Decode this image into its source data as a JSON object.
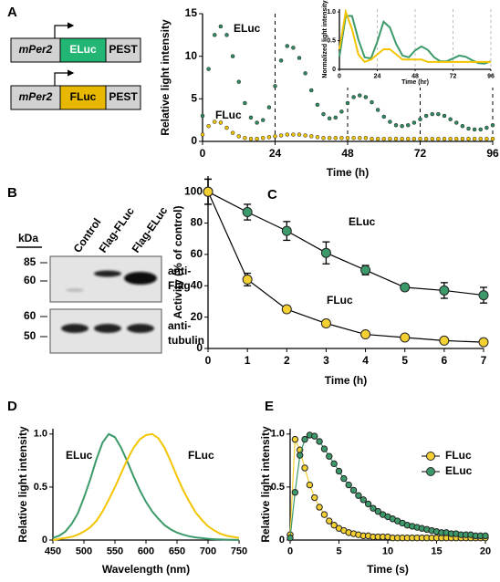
{
  "constructs": [
    {
      "promoter": "mPer2",
      "reporter": "ELuc",
      "degron": "PEST"
    },
    {
      "promoter": "mPer2",
      "reporter": "FLuc",
      "degron": "PEST"
    }
  ],
  "blot": {
    "panel": "B",
    "unit": "kDa",
    "lanes": [
      "Control",
      "Flag-FLuc",
      "Flag-ELuc"
    ],
    "top": {
      "markers": [
        "85",
        "60"
      ],
      "label": [
        "anti-",
        "Flag"
      ]
    },
    "bottom": {
      "markers": [
        "60",
        "50"
      ],
      "label": [
        "anti-",
        "tubulin"
      ]
    }
  },
  "chart_data": [
    {
      "type": "line",
      "panel": "A",
      "ylabel": "Relative light intensity",
      "xlabel": "Time (h)",
      "xlim": [
        0,
        96
      ],
      "xticks": [
        0,
        24,
        48,
        72,
        96
      ],
      "ylim": [
        0,
        15
      ],
      "yticks": [
        0,
        5,
        10,
        15
      ],
      "vlines": [
        24,
        48,
        72,
        96
      ],
      "markers": true,
      "line": false,
      "x": [
        0,
        2,
        4,
        6,
        8,
        10,
        12,
        14,
        16,
        18,
        20,
        22,
        24,
        26,
        28,
        30,
        32,
        34,
        36,
        38,
        40,
        42,
        44,
        46,
        48,
        50,
        52,
        54,
        56,
        58,
        60,
        62,
        64,
        66,
        68,
        70,
        72,
        74,
        76,
        78,
        80,
        82,
        84,
        86,
        88,
        90,
        92,
        94,
        96
      ],
      "series": [
        {
          "name": "ELuc",
          "color": "#2f8a60",
          "values": [
            3.0,
            8.5,
            12.5,
            13.5,
            12.5,
            10.0,
            7.0,
            4.5,
            2.8,
            2.2,
            2.5,
            4.0,
            6.5,
            9.5,
            11.2,
            11.0,
            9.8,
            8.0,
            6.0,
            4.3,
            3.2,
            2.7,
            2.8,
            3.5,
            4.5,
            5.2,
            5.4,
            5.2,
            4.6,
            3.7,
            2.9,
            2.3,
            1.9,
            1.8,
            1.9,
            2.2,
            2.6,
            3.0,
            3.2,
            3.2,
            3.0,
            2.6,
            2.2,
            1.8,
            1.5,
            1.4,
            1.4,
            1.6,
            1.9
          ]
        },
        {
          "name": "FLuc",
          "color": "#f2c500",
          "values": [
            0.8,
            1.8,
            2.3,
            2.2,
            1.6,
            1.0,
            0.6,
            0.4,
            0.3,
            0.3,
            0.4,
            0.5,
            0.6,
            0.7,
            0.8,
            0.8,
            0.8,
            0.7,
            0.6,
            0.5,
            0.4,
            0.4,
            0.4,
            0.4,
            0.4,
            0.4,
            0.4,
            0.4,
            0.3,
            0.3,
            0.3,
            0.3,
            0.3,
            0.3,
            0.3,
            0.3,
            0.3,
            0.3,
            0.3,
            0.3,
            0.3,
            0.3,
            0.3,
            0.3,
            0.3,
            0.3,
            0.3,
            0.3,
            0.3
          ]
        }
      ]
    },
    {
      "type": "line",
      "ylabel": "Normalized light intensity",
      "xlabel": "Time (hr)",
      "xlim": [
        0,
        96
      ],
      "xticks": [
        0,
        24,
        48,
        72,
        96
      ],
      "ylim": [
        0,
        1.05
      ],
      "yticks": [
        0,
        0.5,
        {
          "value": 1,
          "label": "1.0"
        }
      ],
      "vlines": [
        24,
        48,
        72,
        96
      ],
      "markers": false,
      "line": true,
      "x": [
        0,
        4,
        8,
        12,
        16,
        20,
        24,
        28,
        32,
        36,
        40,
        44,
        48,
        52,
        56,
        60,
        64,
        68,
        72,
        76,
        80,
        84,
        88,
        92,
        96
      ],
      "series": [
        {
          "color": "#3c9a6a",
          "values": [
            0.22,
            0.93,
            0.93,
            0.52,
            0.21,
            0.19,
            0.48,
            0.83,
            0.73,
            0.44,
            0.24,
            0.21,
            0.33,
            0.4,
            0.34,
            0.21,
            0.14,
            0.14,
            0.19,
            0.24,
            0.22,
            0.16,
            0.11,
            0.1,
            0.14
          ]
        },
        {
          "color": "#f2c500",
          "values": [
            0.35,
            1.0,
            0.7,
            0.26,
            0.13,
            0.17,
            0.26,
            0.35,
            0.35,
            0.26,
            0.17,
            0.17,
            0.17,
            0.17,
            0.13,
            0.13,
            0.13,
            0.13,
            0.13,
            0.13,
            0.13,
            0.13,
            0.13,
            0.13,
            0.13
          ]
        }
      ]
    },
    {
      "type": "line",
      "panel": "C",
      "ylabel": "Activity (% of control)",
      "xlabel": "Time (h)",
      "xlim": [
        0,
        7
      ],
      "xticks": [
        0,
        1,
        2,
        3,
        4,
        5,
        6,
        7
      ],
      "ylim": [
        0,
        110
      ],
      "yticks": [
        0,
        20,
        40,
        60,
        80,
        100
      ],
      "markers": true,
      "line": true,
      "connector_color": "#000000",
      "x": [
        0,
        1,
        2,
        3,
        4,
        5,
        6,
        7
      ],
      "series": [
        {
          "name": "ELuc",
          "color": "#3c9a6a",
          "values": [
            100,
            87,
            75,
            61,
            50,
            39,
            37,
            34
          ],
          "errors": [
            8,
            5,
            6,
            7,
            3,
            2,
            5,
            5
          ]
        },
        {
          "name": "FLuc",
          "color": "#f5d033",
          "values": [
            100,
            44,
            25,
            16,
            9,
            7,
            5,
            4
          ],
          "errors": [
            8,
            4,
            2,
            1,
            1,
            1,
            1,
            1
          ]
        }
      ]
    },
    {
      "type": "line",
      "panel": "D",
      "ylabel": "Relative light intensity",
      "xlabel": "Wavelength (nm)",
      "xlim": [
        450,
        750
      ],
      "xticks": [
        450,
        500,
        550,
        600,
        650,
        700,
        750
      ],
      "ylim": [
        0,
        1.05
      ],
      "yticks": [
        0,
        0.5,
        {
          "value": 1,
          "label": "1.0"
        }
      ],
      "markers": false,
      "line": true,
      "x": [
        450,
        460,
        470,
        480,
        490,
        500,
        510,
        520,
        530,
        540,
        550,
        560,
        570,
        580,
        590,
        600,
        610,
        620,
        630,
        640,
        650,
        660,
        670,
        680,
        690,
        700,
        710,
        720,
        730,
        740,
        750
      ],
      "series": [
        {
          "name": "ELuc",
          "color": "#3c9a6a",
          "values": [
            0.02,
            0.04,
            0.08,
            0.15,
            0.25,
            0.4,
            0.57,
            0.76,
            0.92,
            1.0,
            0.97,
            0.87,
            0.74,
            0.6,
            0.47,
            0.36,
            0.27,
            0.2,
            0.14,
            0.1,
            0.07,
            0.05,
            0.035,
            0.025,
            0.018,
            0.012,
            0.008,
            0.005,
            0.003,
            0.002,
            0.001
          ]
        },
        {
          "name": "FLuc",
          "color": "#f2c500",
          "values": [
            0.0,
            0.01,
            0.02,
            0.03,
            0.05,
            0.08,
            0.12,
            0.18,
            0.27,
            0.38,
            0.5,
            0.63,
            0.76,
            0.87,
            0.95,
            0.99,
            1.0,
            0.96,
            0.87,
            0.74,
            0.6,
            0.47,
            0.36,
            0.26,
            0.19,
            0.13,
            0.09,
            0.06,
            0.04,
            0.03,
            0.02
          ]
        }
      ]
    },
    {
      "type": "line",
      "panel": "E",
      "ylabel": "Relative light intensity",
      "xlabel": "Time (s)",
      "xlim": [
        0,
        20
      ],
      "xticks": [
        0,
        5,
        10,
        15,
        20
      ],
      "ylim": [
        0,
        1.05
      ],
      "yticks": [
        0,
        0.5,
        {
          "value": 1,
          "label": "1.0"
        }
      ],
      "markers": true,
      "line": true,
      "legend": "upper right",
      "x": [
        0,
        0.5,
        1,
        1.5,
        2,
        2.5,
        3,
        3.5,
        4,
        4.5,
        5,
        5.5,
        6,
        6.5,
        7,
        7.5,
        8,
        8.5,
        9,
        9.5,
        10,
        10.5,
        11,
        11.5,
        12,
        12.5,
        13,
        13.5,
        14,
        14.5,
        15,
        15.5,
        16,
        16.5,
        17,
        17.5,
        18,
        18.5,
        19,
        19.5,
        20
      ],
      "series": [
        {
          "name": "FLuc",
          "color": "#f5d033",
          "values": [
            0.05,
            0.95,
            0.85,
            0.68,
            0.52,
            0.4,
            0.31,
            0.24,
            0.18,
            0.14,
            0.11,
            0.09,
            0.07,
            0.06,
            0.05,
            0.04,
            0.04,
            0.03,
            0.03,
            0.03,
            0.03,
            0.02,
            0.02,
            0.02,
            0.02,
            0.02,
            0.02,
            0.02,
            0.02,
            0.02,
            0.02,
            0.02,
            0.02,
            0.02,
            0.02,
            0.02,
            0.02,
            0.02,
            0.02,
            0.02,
            0.02
          ]
        },
        {
          "name": "ELuc",
          "color": "#3c9a6a",
          "values": [
            0.02,
            0.45,
            0.8,
            0.95,
            0.99,
            0.98,
            0.93,
            0.86,
            0.79,
            0.72,
            0.65,
            0.58,
            0.52,
            0.47,
            0.42,
            0.38,
            0.34,
            0.3,
            0.27,
            0.24,
            0.22,
            0.2,
            0.18,
            0.16,
            0.14,
            0.13,
            0.12,
            0.11,
            0.1,
            0.09,
            0.08,
            0.07,
            0.07,
            0.06,
            0.06,
            0.05,
            0.05,
            0.05,
            0.04,
            0.04,
            0.04
          ]
        }
      ]
    }
  ]
}
